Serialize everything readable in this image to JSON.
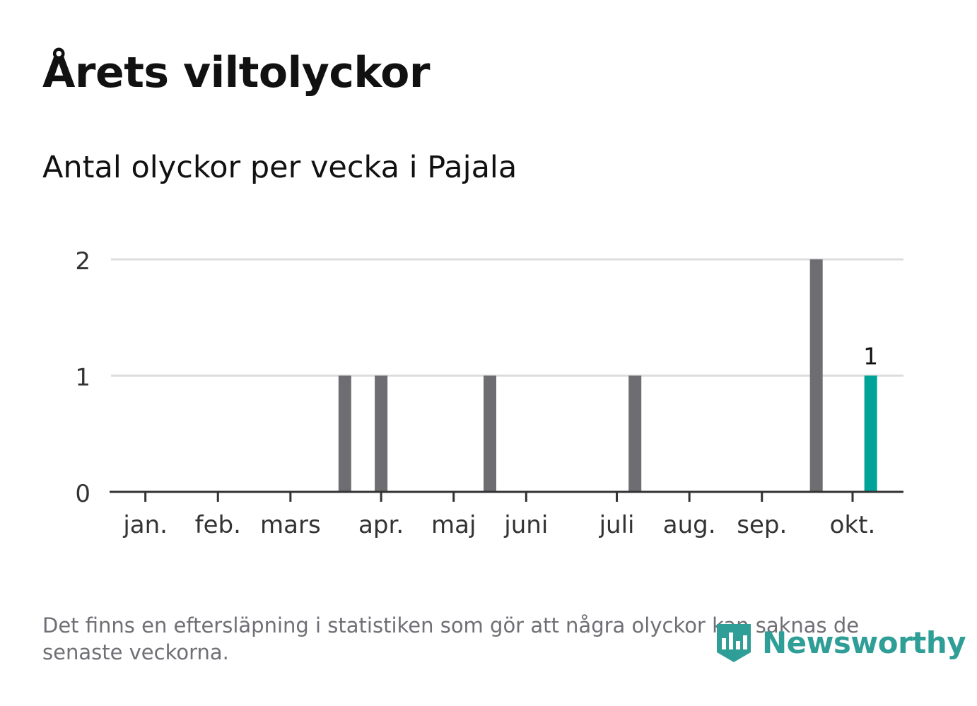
{
  "chart_data": {
    "type": "bar",
    "title": "Årets viltolyckor",
    "subtitle": "Antal olyckor per vecka i Pajala",
    "xlabel": "",
    "ylabel": "",
    "ylim": [
      0,
      2
    ],
    "yticks": [
      "0",
      "1",
      "2"
    ],
    "month_ticks": [
      {
        "label": "jan.",
        "week": 2
      },
      {
        "label": "feb.",
        "week": 6
      },
      {
        "label": "mars",
        "week": 10
      },
      {
        "label": "apr.",
        "week": 15
      },
      {
        "label": "maj",
        "week": 19
      },
      {
        "label": "juni",
        "week": 23
      },
      {
        "label": "juli",
        "week": 28
      },
      {
        "label": "aug.",
        "week": 32
      },
      {
        "label": "sep.",
        "week": 36
      },
      {
        "label": "okt.",
        "week": 41
      }
    ],
    "weeks_total": 43,
    "series": [
      {
        "name": "Antal olyckor",
        "weeks": [
          13,
          15,
          21,
          29,
          39,
          42
        ],
        "values": [
          1,
          1,
          1,
          1,
          2,
          1
        ]
      }
    ],
    "highlight": {
      "week": 42,
      "value": 1,
      "label": "1"
    },
    "colors": {
      "bar": "#6e6d72",
      "highlight": "#00a397",
      "grid": "#dddddd",
      "axis": "#333333"
    },
    "grid": true
  },
  "footnote": "Det finns en eftersläpning i statistiken som gör att några olyckor kan saknas de senaste veckorna.",
  "logo": {
    "text": "Newsworthy",
    "icon": "newsworthy-logo-icon",
    "color": "#2f9e96"
  }
}
